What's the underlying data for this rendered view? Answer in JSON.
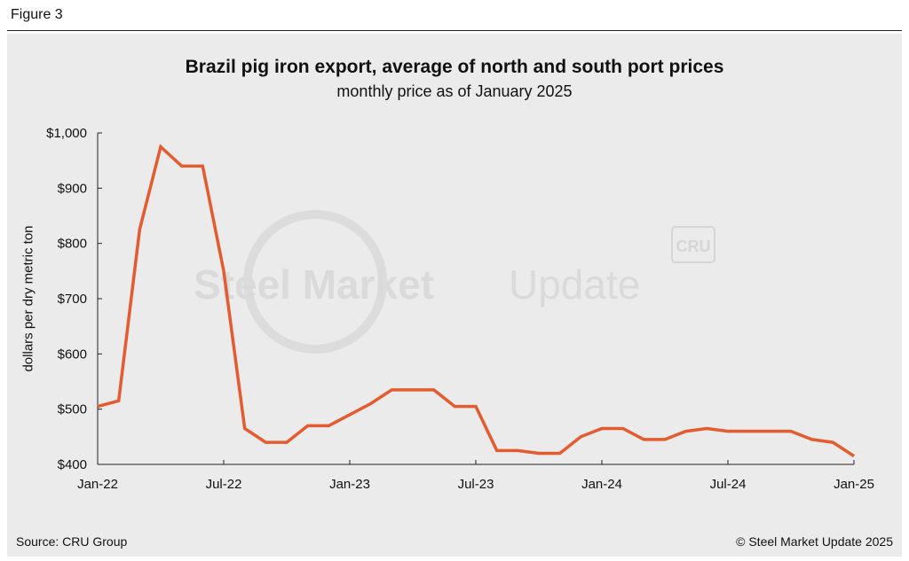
{
  "figure_label": "Figure 3",
  "title": "Brazil pig iron export, average of north and south port prices",
  "subtitle": "monthly price as of January 2025",
  "source": "Source: CRU Group",
  "copyright": "© Steel Market Update 2025",
  "watermark": {
    "part1": "Steel Market",
    "part2": "Update",
    "badge": "CRU"
  },
  "colors": {
    "line": "#e35b2f",
    "panel": "#ebebeb",
    "axis": "#222222"
  },
  "chart_data": {
    "type": "line",
    "title": "Brazil pig iron export, average of north and south port prices",
    "subtitle": "monthly price as of January 2025",
    "ylabel": "dollars per dry metric ton",
    "xlabel": "",
    "ylim": [
      400,
      1000
    ],
    "y_ticks": [
      400,
      500,
      600,
      700,
      800,
      900,
      1000
    ],
    "y_tick_labels": [
      "$400",
      "$500",
      "$600",
      "$700",
      "$800",
      "$900",
      "$1,000"
    ],
    "x_tick_labels": [
      "Jan-22",
      "Jul-22",
      "Jan-23",
      "Jul-23",
      "Jan-24",
      "Jul-24",
      "Jan-25"
    ],
    "x_tick_months": [
      "Jan-22",
      "Jul-22",
      "Jan-23",
      "Jul-23",
      "Jan-24",
      "Jul-24",
      "Jan-25"
    ],
    "grid": false,
    "legend": "none",
    "categories": [
      "Jan-22",
      "Feb-22",
      "Mar-22",
      "Apr-22",
      "May-22",
      "Jun-22",
      "Jul-22",
      "Aug-22",
      "Sep-22",
      "Oct-22",
      "Nov-22",
      "Dec-22",
      "Jan-23",
      "Feb-23",
      "Mar-23",
      "Apr-23",
      "May-23",
      "Jun-23",
      "Jul-23",
      "Aug-23",
      "Sep-23",
      "Oct-23",
      "Nov-23",
      "Dec-23",
      "Jan-24",
      "Feb-24",
      "Mar-24",
      "Apr-24",
      "May-24",
      "Jun-24",
      "Jul-24",
      "Aug-24",
      "Sep-24",
      "Oct-24",
      "Nov-24",
      "Dec-24",
      "Jan-25"
    ],
    "series": [
      {
        "values": [
          505,
          515,
          825,
          975,
          940,
          940,
          750,
          465,
          440,
          440,
          470,
          470,
          490,
          510,
          535,
          535,
          535,
          505,
          505,
          425,
          425,
          420,
          420,
          450,
          465,
          465,
          445,
          445,
          460,
          465,
          460,
          460,
          460,
          460,
          445,
          440,
          415
        ]
      }
    ]
  }
}
